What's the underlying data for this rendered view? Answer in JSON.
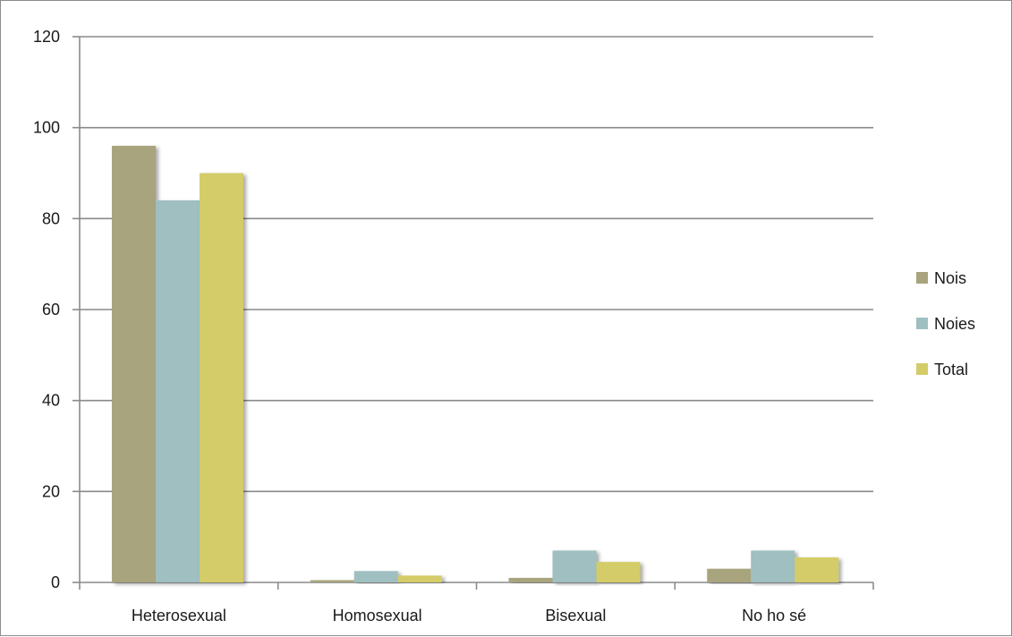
{
  "chart_data": {
    "type": "bar",
    "categories": [
      "Heterosexual",
      "Homosexual",
      "Bisexual",
      "No ho sé"
    ],
    "series": [
      {
        "name": "Nois",
        "color": "#a8a57e",
        "values": [
          96,
          0.5,
          1,
          3
        ]
      },
      {
        "name": "Noies",
        "color": "#9fbfc1",
        "values": [
          84,
          2.5,
          7,
          7
        ]
      },
      {
        "name": "Total",
        "color": "#d4cc68",
        "values": [
          90,
          1.5,
          4.5,
          5.5
        ]
      }
    ],
    "ylim": [
      0,
      120
    ],
    "yticks": [
      0,
      20,
      40,
      60,
      80,
      100,
      120
    ],
    "ytick_labels": [
      "0",
      "20",
      "40",
      "60",
      "80",
      "100",
      "120"
    ],
    "grid": true,
    "legend_position": "right",
    "title": "",
    "xlabel": "",
    "ylabel": ""
  }
}
